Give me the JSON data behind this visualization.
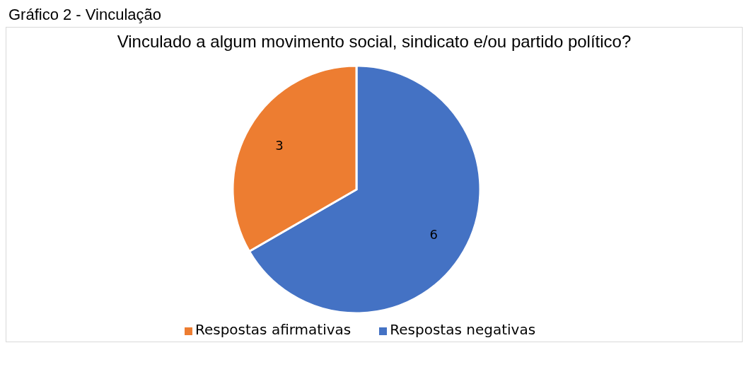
{
  "chart_data": {
    "type": "pie",
    "title": "Vinculado a algum movimento social, sindicato e/ou partido político?",
    "annotations": [
      "Gráfico 2 - Vinculação"
    ],
    "categories": [
      "Respostas negativas",
      "Respostas afirmativas"
    ],
    "values": [
      6,
      3
    ],
    "colors": [
      "#4472c4",
      "#ed7d31"
    ],
    "data_labels": true,
    "legend": "bottom"
  }
}
